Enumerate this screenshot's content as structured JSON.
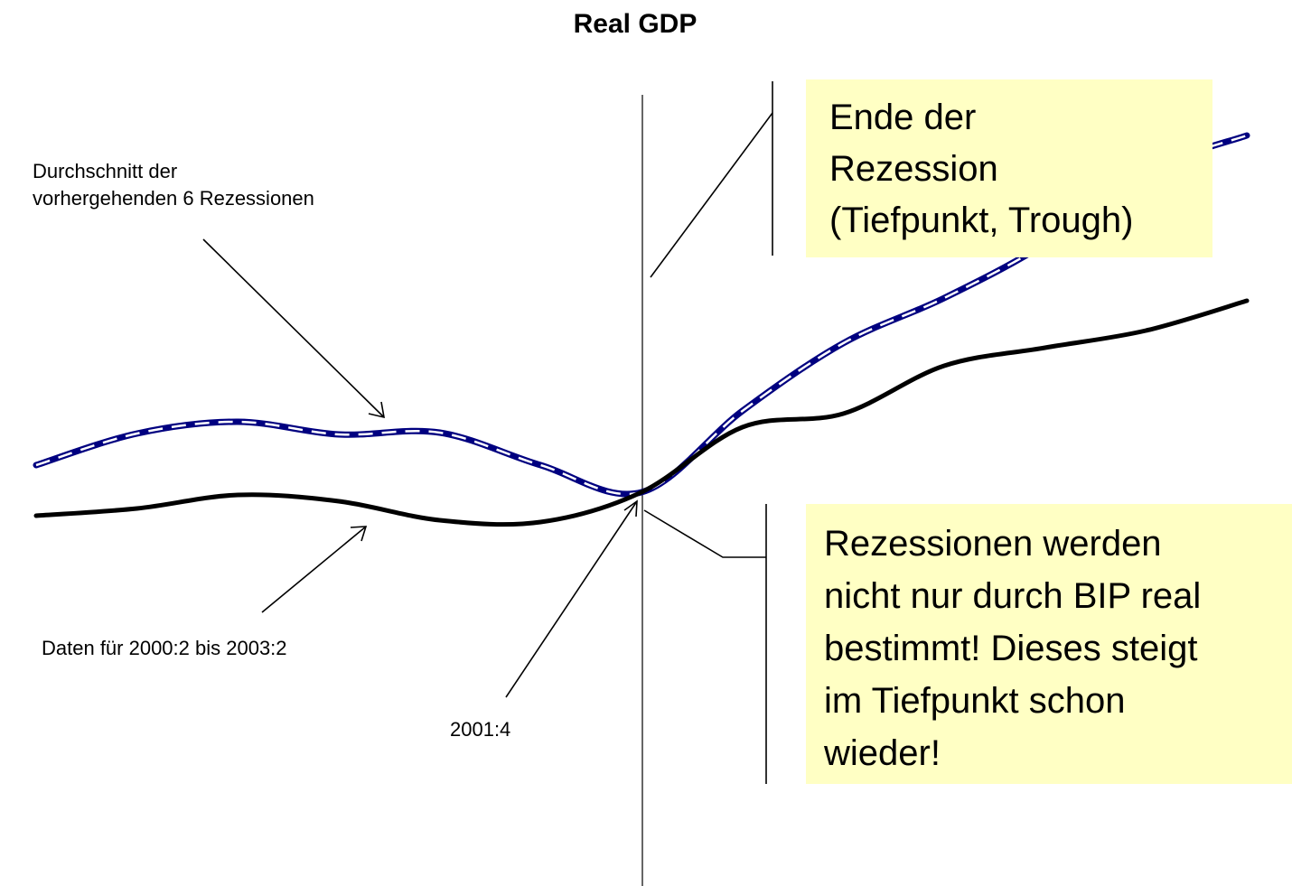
{
  "chart_data": {
    "type": "line",
    "title": "Real GDP",
    "categories": [
      null,
      null,
      null,
      null,
      null,
      null,
      "2001:4",
      null,
      null,
      null,
      null,
      null,
      null
    ],
    "series": [
      {
        "name": "Durchschnitt der\nvorhergehenden 6 Rezessionen",
        "color": "#000080",
        "values": [
          101.5,
          103.25,
          103.9,
          103.2,
          103.3,
          101.5,
          100,
          104.5,
          108.25,
          110.75,
          113.75,
          117.75,
          119.75
        ]
      },
      {
        "name": "Daten für 2000:2 bis 2003:2",
        "color": "#000000",
        "values": [
          98.7,
          99.1,
          99.85,
          99.5,
          98.45,
          98.35,
          100,
          103.6,
          104.35,
          107,
          108,
          108.95,
          110.6
        ]
      }
    ],
    "ylim": [
      80,
      125
    ],
    "annotations": [
      {
        "text": "Ende der\nRezession\n(Tiefpunkt, Trough)"
      },
      {
        "text": "Rezessionen werden\nnicht nur durch BIP real\nbestimmt! Dieses steigt\nim Tiefpunkt schon\nwieder!"
      }
    ]
  }
}
